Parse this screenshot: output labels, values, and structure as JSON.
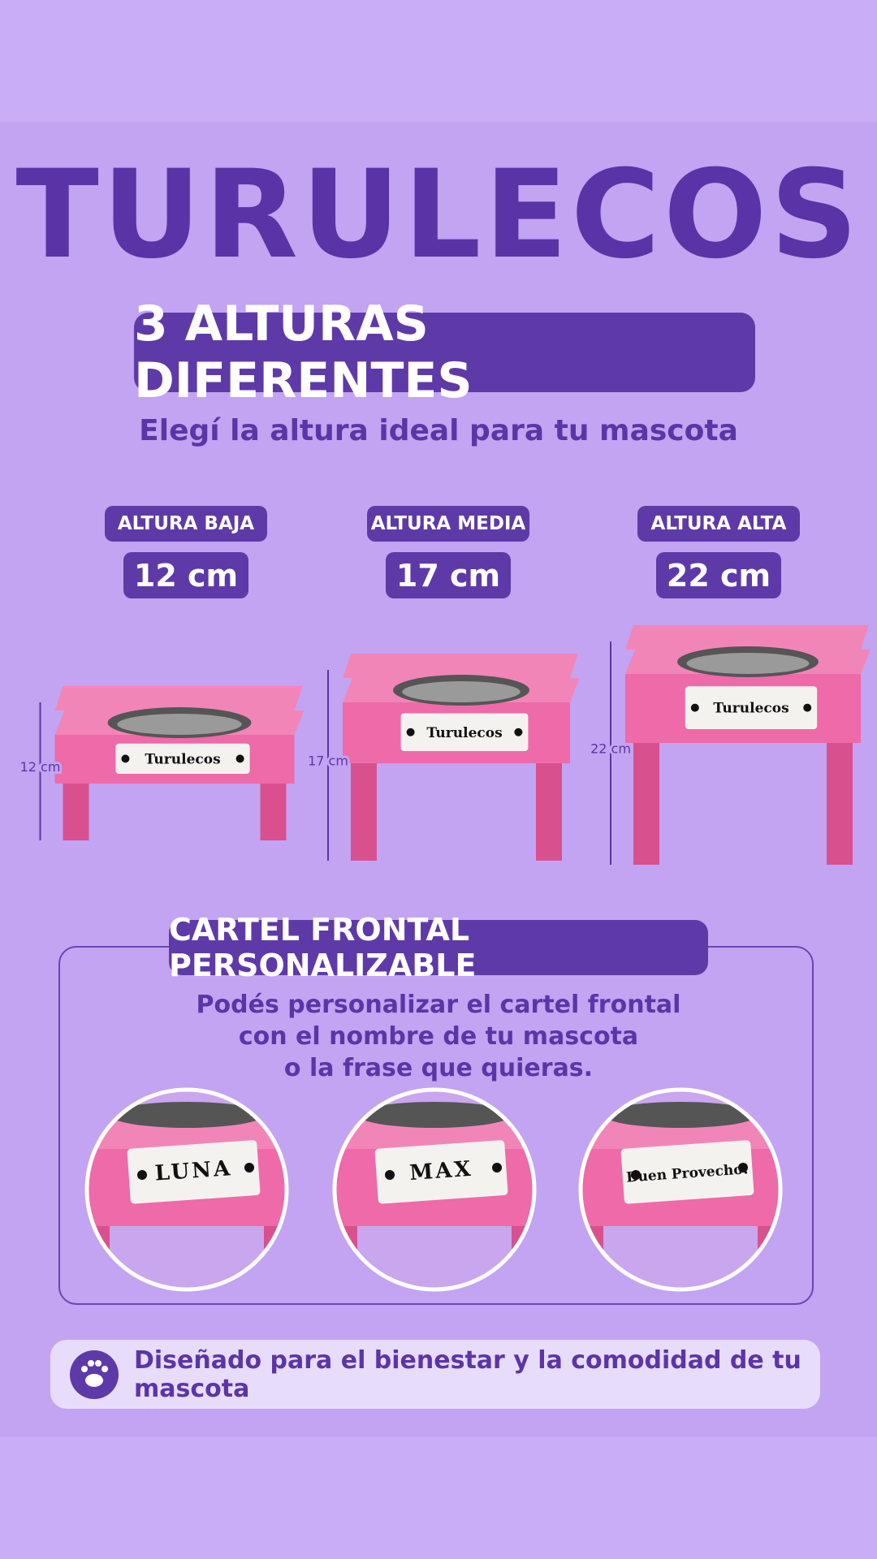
{
  "brand": "TURULECOS",
  "headline": "3 ALTURAS DIFERENTES",
  "subtitle": "Elegí la altura ideal para tu mascota",
  "heights": [
    {
      "label": "ALTURA BAJA",
      "value": "12 cm",
      "dimension": "12 cm",
      "sign": "Turulecos"
    },
    {
      "label": "ALTURA MEDIA",
      "value": "17 cm",
      "dimension": "17 cm",
      "sign": "Turulecos"
    },
    {
      "label": "ALTURA ALTA",
      "value": "22 cm",
      "dimension": "22 cm",
      "sign": "Turulecos"
    }
  ],
  "custom": {
    "title": "CARTEL FRONTAL PERSONALIZABLE",
    "lines": [
      "Podés personalizar el cartel frontal",
      "con el nombre de tu mascota",
      "o la frase que quieras."
    ],
    "examples": [
      "LUNA",
      "MAX",
      "Buen Provecho!"
    ]
  },
  "footer": "Diseñado para el bienestar y la comodidad de tu mascota"
}
